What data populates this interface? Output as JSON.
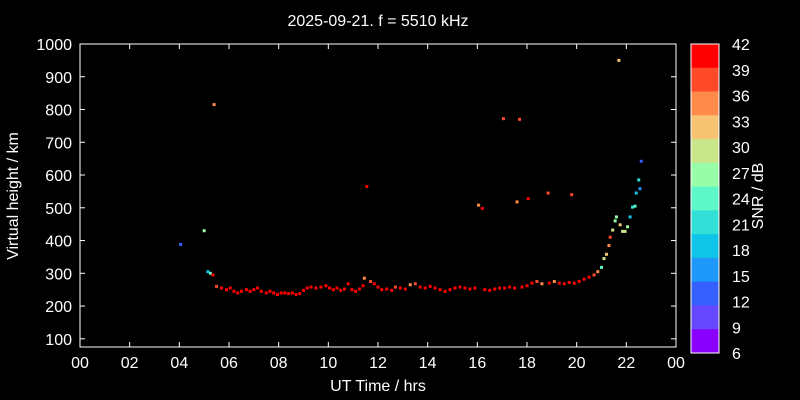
{
  "chart_data": {
    "type": "scatter",
    "title": "2025-09-21. f = 5510 kHz",
    "xlabel": "UT Time / hrs",
    "ylabel": "Virtual height / km",
    "xlim": [
      0,
      24
    ],
    "ylim": [
      75,
      1000
    ],
    "x_ticks": [
      "00",
      "02",
      "04",
      "06",
      "08",
      "10",
      "12",
      "14",
      "16",
      "18",
      "20",
      "22",
      "00"
    ],
    "y_ticks": [
      "100",
      "200",
      "300",
      "400",
      "500",
      "600",
      "700",
      "800",
      "900",
      "1000"
    ],
    "colorbar": {
      "label": "SNR / dB",
      "range": [
        6,
        42
      ],
      "ticks": [
        "42",
        "39",
        "36",
        "33",
        "30",
        "27",
        "24",
        "21",
        "18",
        "15",
        "12",
        "9",
        "6"
      ],
      "colors": [
        "#ff0000",
        "#ff4a2a",
        "#ff8a4a",
        "#f6c473",
        "#c9e68a",
        "#98fca8",
        "#5ef7c8",
        "#33e0d8",
        "#10c4e8",
        "#1e98fb",
        "#3560ff",
        "#6548ff",
        "#8a00ff"
      ]
    },
    "series": [
      {
        "points": [
          [
            4.05,
            388,
            12
          ],
          [
            5.0,
            430,
            27
          ],
          [
            5.15,
            305,
            18
          ],
          [
            5.25,
            300,
            24
          ],
          [
            5.35,
            295,
            42
          ],
          [
            5.4,
            815,
            36
          ],
          [
            5.5,
            260,
            39
          ],
          [
            5.7,
            255,
            42
          ],
          [
            5.9,
            250,
            42
          ],
          [
            6.05,
            255,
            42
          ],
          [
            6.2,
            245,
            42
          ],
          [
            6.35,
            240,
            42
          ],
          [
            6.5,
            245,
            42
          ],
          [
            6.7,
            250,
            42
          ],
          [
            6.85,
            245,
            42
          ],
          [
            7.0,
            250,
            42
          ],
          [
            7.15,
            255,
            42
          ],
          [
            7.3,
            245,
            42
          ],
          [
            7.5,
            240,
            42
          ],
          [
            7.65,
            245,
            42
          ],
          [
            7.8,
            240,
            42
          ],
          [
            7.95,
            235,
            42
          ],
          [
            8.1,
            240,
            42
          ],
          [
            8.25,
            240,
            42
          ],
          [
            8.4,
            238,
            42
          ],
          [
            8.55,
            240,
            42
          ],
          [
            8.7,
            235,
            42
          ],
          [
            8.85,
            238,
            42
          ],
          [
            9.0,
            248,
            42
          ],
          [
            9.15,
            255,
            42
          ],
          [
            9.3,
            258,
            42
          ],
          [
            9.5,
            255,
            42
          ],
          [
            9.7,
            258,
            42
          ],
          [
            9.9,
            262,
            42
          ],
          [
            10.05,
            255,
            42
          ],
          [
            10.2,
            250,
            42
          ],
          [
            10.35,
            255,
            42
          ],
          [
            10.5,
            248,
            42
          ],
          [
            10.65,
            252,
            42
          ],
          [
            10.8,
            268,
            42
          ],
          [
            10.95,
            250,
            42
          ],
          [
            11.1,
            245,
            42
          ],
          [
            11.25,
            252,
            42
          ],
          [
            11.4,
            262,
            42
          ],
          [
            11.45,
            285,
            36
          ],
          [
            11.55,
            565,
            42
          ],
          [
            11.7,
            275,
            39
          ],
          [
            11.85,
            268,
            42
          ],
          [
            12.0,
            258,
            42
          ],
          [
            12.15,
            250,
            42
          ],
          [
            12.35,
            252,
            42
          ],
          [
            12.55,
            248,
            42
          ],
          [
            12.7,
            258,
            39
          ],
          [
            12.9,
            255,
            42
          ],
          [
            13.1,
            252,
            42
          ],
          [
            13.3,
            265,
            36
          ],
          [
            13.5,
            268,
            39
          ],
          [
            13.7,
            258,
            42
          ],
          [
            13.9,
            255,
            42
          ],
          [
            14.1,
            260,
            42
          ],
          [
            14.3,
            255,
            42
          ],
          [
            14.5,
            250,
            42
          ],
          [
            14.7,
            245,
            42
          ],
          [
            14.9,
            250,
            42
          ],
          [
            15.1,
            255,
            42
          ],
          [
            15.3,
            258,
            42
          ],
          [
            15.5,
            255,
            42
          ],
          [
            15.7,
            252,
            42
          ],
          [
            15.9,
            255,
            42
          ],
          [
            16.05,
            508,
            36
          ],
          [
            16.2,
            498,
            42
          ],
          [
            16.3,
            250,
            42
          ],
          [
            16.5,
            248,
            42
          ],
          [
            16.7,
            252,
            42
          ],
          [
            16.9,
            255,
            42
          ],
          [
            17.05,
            772,
            39
          ],
          [
            17.1,
            255,
            42
          ],
          [
            17.3,
            258,
            42
          ],
          [
            17.5,
            255,
            42
          ],
          [
            17.6,
            518,
            36
          ],
          [
            17.7,
            770,
            39
          ],
          [
            17.8,
            258,
            42
          ],
          [
            18.0,
            262,
            42
          ],
          [
            18.05,
            528,
            42
          ],
          [
            18.2,
            270,
            42
          ],
          [
            18.4,
            275,
            39
          ],
          [
            18.6,
            268,
            36
          ],
          [
            18.85,
            545,
            39
          ],
          [
            18.9,
            270,
            42
          ],
          [
            19.1,
            275,
            36
          ],
          [
            19.3,
            270,
            42
          ],
          [
            19.5,
            268,
            42
          ],
          [
            19.7,
            272,
            42
          ],
          [
            19.8,
            540,
            39
          ],
          [
            19.9,
            270,
            42
          ],
          [
            20.1,
            275,
            42
          ],
          [
            20.3,
            282,
            42
          ],
          [
            20.5,
            288,
            42
          ],
          [
            20.7,
            295,
            39
          ],
          [
            20.85,
            305,
            36
          ],
          [
            21.0,
            318,
            24
          ],
          [
            21.1,
            345,
            30
          ],
          [
            21.2,
            358,
            33
          ],
          [
            21.3,
            385,
            36
          ],
          [
            21.35,
            410,
            39
          ],
          [
            21.45,
            432,
            30
          ],
          [
            21.55,
            460,
            27
          ],
          [
            21.6,
            472,
            27
          ],
          [
            21.7,
            950,
            33
          ],
          [
            21.75,
            448,
            33
          ],
          [
            21.85,
            428,
            30
          ],
          [
            21.95,
            428,
            30
          ],
          [
            22.05,
            442,
            27
          ],
          [
            22.15,
            472,
            18
          ],
          [
            22.25,
            502,
            21
          ],
          [
            22.35,
            505,
            24
          ],
          [
            22.4,
            545,
            18
          ],
          [
            22.5,
            585,
            21
          ],
          [
            22.55,
            558,
            15
          ],
          [
            22.6,
            642,
            12
          ]
        ]
      }
    ]
  }
}
